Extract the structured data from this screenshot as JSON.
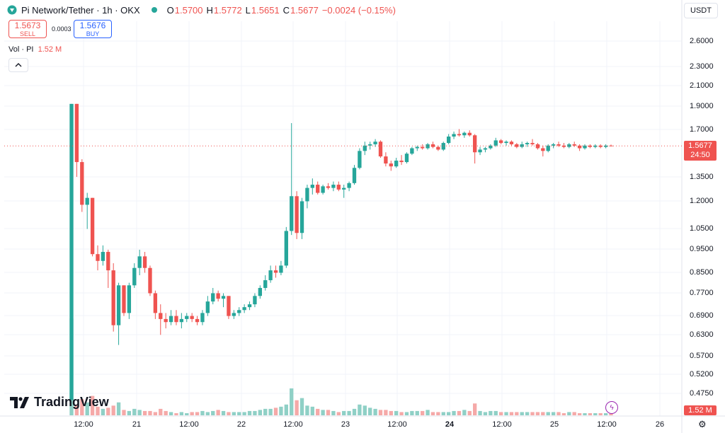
{
  "header": {
    "symbol": "Pi Network/Tether · 1h · OKX",
    "o_label": "O",
    "o_value": "1.5700",
    "h_label": "H",
    "h_value": "1.5772",
    "l_label": "L",
    "l_value": "1.5651",
    "c_label": "C",
    "c_value": "1.5677",
    "change": "−0.0024 (−0.15%)",
    "status_color": "#26a69a"
  },
  "trade": {
    "sell_price": "1.5673",
    "sell_label": "SELL",
    "spread": "0.0003",
    "buy_price": "1.5676",
    "buy_label": "BUY"
  },
  "volume_legend": {
    "label": "Vol · PI",
    "value": "1.52 M"
  },
  "currency": "USDT",
  "last_price": {
    "value": "1.5677",
    "countdown": "24:50"
  },
  "volume_last": "1.52 M",
  "brand": "TradingView",
  "colors": {
    "up": "#26a69a",
    "down": "#ef5350",
    "up_vol": "#8fd0c6",
    "down_vol": "#f5a9a8"
  },
  "chart_data": {
    "type": "candlestick",
    "y_scale": "log",
    "y_ticks": [
      "2.6000",
      "2.3000",
      "2.1000",
      "1.9000",
      "1.7000",
      "1.5677",
      "1.3500",
      "1.2000",
      "1.0500",
      "0.9500",
      "0.8500",
      "0.7700",
      "0.6900",
      "0.6300",
      "0.5700",
      "0.5200",
      "0.4750"
    ],
    "x_ticks": [
      "12:00",
      "21",
      "12:00",
      "22",
      "12:00",
      "23",
      "12:00",
      "24",
      "12:00",
      "25",
      "12:00",
      "26"
    ],
    "ohlc": [
      [
        0.46,
        1.92,
        0.46,
        1.92
      ],
      [
        1.92,
        1.92,
        1.35,
        1.45
      ],
      [
        1.45,
        1.47,
        1.14,
        1.18
      ],
      [
        1.18,
        1.25,
        1.05,
        1.22
      ],
      [
        1.22,
        1.22,
        0.92,
        0.93
      ],
      [
        0.93,
        0.97,
        0.86,
        0.9
      ],
      [
        0.9,
        0.97,
        0.88,
        0.94
      ],
      [
        0.94,
        0.95,
        0.79,
        0.86
      ],
      [
        0.86,
        0.89,
        0.64,
        0.66
      ],
      [
        0.66,
        0.81,
        0.6,
        0.8
      ],
      [
        0.8,
        0.8,
        0.69,
        0.7
      ],
      [
        0.7,
        0.81,
        0.68,
        0.8
      ],
      [
        0.8,
        0.89,
        0.79,
        0.87
      ],
      [
        0.87,
        0.95,
        0.84,
        0.92
      ],
      [
        0.92,
        0.94,
        0.85,
        0.87
      ],
      [
        0.87,
        0.88,
        0.76,
        0.77
      ],
      [
        0.77,
        0.78,
        0.68,
        0.7
      ],
      [
        0.7,
        0.73,
        0.63,
        0.68
      ],
      [
        0.68,
        0.7,
        0.65,
        0.67
      ],
      [
        0.67,
        0.71,
        0.66,
        0.69
      ],
      [
        0.69,
        0.71,
        0.66,
        0.67
      ],
      [
        0.67,
        0.7,
        0.65,
        0.68
      ],
      [
        0.68,
        0.7,
        0.67,
        0.69
      ],
      [
        0.69,
        0.7,
        0.67,
        0.68
      ],
      [
        0.68,
        0.69,
        0.66,
        0.67
      ],
      [
        0.67,
        0.71,
        0.66,
        0.7
      ],
      [
        0.7,
        0.76,
        0.69,
        0.74
      ],
      [
        0.74,
        0.79,
        0.73,
        0.77
      ],
      [
        0.77,
        0.78,
        0.74,
        0.75
      ],
      [
        0.75,
        0.77,
        0.72,
        0.76
      ],
      [
        0.76,
        0.76,
        0.68,
        0.69
      ],
      [
        0.69,
        0.71,
        0.68,
        0.7
      ],
      [
        0.7,
        0.72,
        0.69,
        0.71
      ],
      [
        0.71,
        0.73,
        0.7,
        0.72
      ],
      [
        0.72,
        0.74,
        0.71,
        0.73
      ],
      [
        0.73,
        0.77,
        0.72,
        0.76
      ],
      [
        0.76,
        0.8,
        0.75,
        0.79
      ],
      [
        0.79,
        0.84,
        0.78,
        0.82
      ],
      [
        0.82,
        0.88,
        0.81,
        0.86
      ],
      [
        0.86,
        0.88,
        0.83,
        0.85
      ],
      [
        0.85,
        0.9,
        0.84,
        0.88
      ],
      [
        0.88,
        1.06,
        0.87,
        1.04
      ],
      [
        1.04,
        1.75,
        1.02,
        1.23
      ],
      [
        1.23,
        1.26,
        1.0,
        1.03
      ],
      [
        1.03,
        1.22,
        1.0,
        1.2
      ],
      [
        1.2,
        1.3,
        1.16,
        1.28
      ],
      [
        1.28,
        1.34,
        1.24,
        1.3
      ],
      [
        1.3,
        1.32,
        1.24,
        1.25
      ],
      [
        1.25,
        1.3,
        1.24,
        1.29
      ],
      [
        1.29,
        1.31,
        1.27,
        1.28
      ],
      [
        1.28,
        1.32,
        1.26,
        1.3
      ],
      [
        1.3,
        1.32,
        1.26,
        1.27
      ],
      [
        1.27,
        1.3,
        1.22,
        1.28
      ],
      [
        1.28,
        1.32,
        1.26,
        1.31
      ],
      [
        1.31,
        1.43,
        1.3,
        1.41
      ],
      [
        1.41,
        1.55,
        1.4,
        1.53
      ],
      [
        1.53,
        1.6,
        1.5,
        1.57
      ],
      [
        1.57,
        1.6,
        1.54,
        1.58
      ],
      [
        1.58,
        1.62,
        1.56,
        1.6
      ],
      [
        1.6,
        1.61,
        1.48,
        1.49
      ],
      [
        1.49,
        1.52,
        1.42,
        1.44
      ],
      [
        1.44,
        1.46,
        1.39,
        1.42
      ],
      [
        1.42,
        1.48,
        1.41,
        1.46
      ],
      [
        1.46,
        1.5,
        1.43,
        1.45
      ],
      [
        1.45,
        1.52,
        1.44,
        1.51
      ],
      [
        1.51,
        1.56,
        1.5,
        1.55
      ],
      [
        1.55,
        1.57,
        1.53,
        1.56
      ],
      [
        1.56,
        1.58,
        1.54,
        1.55
      ],
      [
        1.55,
        1.59,
        1.54,
        1.58
      ],
      [
        1.58,
        1.6,
        1.55,
        1.56
      ],
      [
        1.56,
        1.57,
        1.53,
        1.54
      ],
      [
        1.54,
        1.6,
        1.53,
        1.59
      ],
      [
        1.59,
        1.66,
        1.58,
        1.64
      ],
      [
        1.64,
        1.68,
        1.62,
        1.66
      ],
      [
        1.66,
        1.7,
        1.64,
        1.65
      ],
      [
        1.65,
        1.68,
        1.63,
        1.67
      ],
      [
        1.67,
        1.69,
        1.64,
        1.65
      ],
      [
        1.65,
        1.66,
        1.44,
        1.52
      ],
      [
        1.52,
        1.56,
        1.5,
        1.54
      ],
      [
        1.54,
        1.56,
        1.52,
        1.55
      ],
      [
        1.55,
        1.58,
        1.54,
        1.57
      ],
      [
        1.57,
        1.63,
        1.56,
        1.61
      ],
      [
        1.61,
        1.62,
        1.58,
        1.59
      ],
      [
        1.59,
        1.61,
        1.57,
        1.6
      ],
      [
        1.6,
        1.61,
        1.57,
        1.58
      ],
      [
        1.58,
        1.59,
        1.55,
        1.56
      ],
      [
        1.56,
        1.6,
        1.55,
        1.58
      ],
      [
        1.58,
        1.6,
        1.56,
        1.59
      ],
      [
        1.59,
        1.62,
        1.57,
        1.58
      ],
      [
        1.58,
        1.59,
        1.54,
        1.55
      ],
      [
        1.55,
        1.57,
        1.49,
        1.53
      ],
      [
        1.53,
        1.58,
        1.52,
        1.57
      ],
      [
        1.57,
        1.59,
        1.55,
        1.58
      ],
      [
        1.58,
        1.6,
        1.56,
        1.57
      ],
      [
        1.57,
        1.59,
        1.55,
        1.56
      ],
      [
        1.56,
        1.59,
        1.55,
        1.58
      ],
      [
        1.58,
        1.6,
        1.56,
        1.57
      ],
      [
        1.57,
        1.58,
        1.53,
        1.55
      ],
      [
        1.55,
        1.58,
        1.54,
        1.57
      ],
      [
        1.57,
        1.58,
        1.55,
        1.56
      ],
      [
        1.56,
        1.58,
        1.55,
        1.57
      ],
      [
        1.57,
        1.58,
        1.55,
        1.56
      ],
      [
        1.56,
        1.58,
        1.55,
        1.57
      ],
      [
        1.57,
        1.5772,
        1.5651,
        1.5677
      ]
    ],
    "volume_m": [
      90,
      10,
      15,
      12,
      18,
      8,
      6,
      7,
      9,
      12,
      5,
      4,
      6,
      5,
      4,
      4,
      3,
      6,
      4,
      3,
      2,
      3,
      2,
      3,
      3,
      4,
      3,
      4,
      5,
      4,
      3,
      3,
      3,
      3,
      4,
      4,
      5,
      6,
      6,
      7,
      8,
      10,
      25,
      14,
      16,
      9,
      8,
      6,
      5,
      5,
      4,
      3,
      4,
      4,
      6,
      10,
      9,
      7,
      6,
      5,
      5,
      4,
      4,
      3,
      3,
      4,
      4,
      4,
      5,
      3,
      3,
      3,
      3,
      4,
      4,
      5,
      4,
      11,
      4,
      3,
      4,
      4,
      3,
      3,
      3,
      3,
      3,
      3,
      3,
      3,
      3,
      3,
      3,
      3,
      2,
      3,
      3,
      2,
      2,
      2,
      2,
      2,
      2,
      1.52
    ]
  }
}
